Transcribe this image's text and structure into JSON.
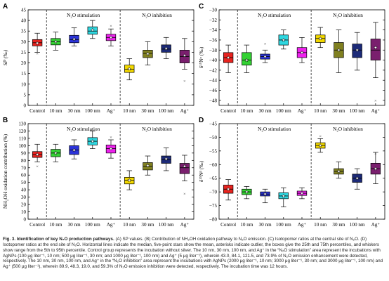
{
  "caption": {
    "title": "Fig. 3. Identification of key N₂O production pathways.",
    "body": " (A) SP values. (B) Contribution of NH₂OH oxidation pathway to N₂O emission. (C) Isotopomer ratios at the central site of N₂O. (D) Isotopomer ratios at the end site of N₂O. Horizontal lines indicate the median, five-point stars show the mean, asterisks indicate outlier, the boxes give the 25th and 75th percentiles, and whiskers show range from the 5th to 95th percentile. Control group represents the incubation without silver. The 10 nm, 30 nm, 100 nm, and Ag⁺ in the “N₂O stimulation” area represent the incubations with AgNPs (100 μg liter⁻¹, 10 nm; 500 μg liter⁻¹, 30 nm; and 1000 μg liter⁻¹, 100 nm) and Ag⁺ (5 μg liter⁻¹), wherein 43.0, 84.1, 121.5, and 73.9% of N₂O emission enhancement were detected, respectively. The 10 nm, 30 nm, 100 nm, and Ag⁺ in the “N₂O inhibition” area represent the incubations with AgNPs (2000 μg liter⁻¹, 10 nm; 3000 μg liter⁻¹, 30 nm; and 3000 μg liter⁻¹, 100 nm) and Ag⁺ (500 μg liter⁻¹), wherein 89.9, 48.3, 19.0, and 59.3% of N₂O emission inhibition were detected, respectively. The incubation time was 12 hours."
  },
  "chart_data": [
    {
      "panel": "A",
      "type": "box",
      "ylabel": "SP (‰)",
      "ylim": [
        0,
        45
      ],
      "yticks": [
        0,
        5,
        10,
        15,
        20,
        25,
        30,
        35,
        40,
        45
      ],
      "categories": [
        "Control",
        "10 nm",
        "30 nm",
        "100 nm",
        "Ag⁺",
        "10 nm",
        "30 nm",
        "100 nm",
        "Ag⁺"
      ],
      "region_labels": [
        "N₂O stimulation",
        "N₂O inhibition"
      ],
      "colors": [
        "#e8231f",
        "#33d233",
        "#2b33d9",
        "#2fd7e0",
        "#ee22ee",
        "#f2d800",
        "#808020",
        "#1c2a78",
        "#7a1f6e"
      ],
      "boxes": [
        {
          "wlo": 25,
          "q1": 28,
          "med": 29.5,
          "q3": 31,
          "whi": 34,
          "mean": 29.3,
          "outliers": [
            24.5
          ]
        },
        {
          "wlo": 26,
          "q1": 28.5,
          "med": 30,
          "q3": 31.5,
          "whi": 34.5,
          "mean": 30,
          "outliers": []
        },
        {
          "wlo": 28,
          "q1": 29.5,
          "med": 31,
          "q3": 33,
          "whi": 36.5,
          "mean": 31.2,
          "outliers": []
        },
        {
          "wlo": 31.5,
          "q1": 33.5,
          "med": 35,
          "q3": 37,
          "whi": 40,
          "mean": 35.5,
          "outliers": []
        },
        {
          "wlo": 28,
          "q1": 30.5,
          "med": 32,
          "q3": 33.5,
          "whi": 36,
          "mean": 32,
          "outliers": [
            37.5
          ]
        },
        {
          "wlo": 12,
          "q1": 15.5,
          "med": 17,
          "q3": 19,
          "whi": 22,
          "mean": 17.2,
          "outliers": []
        },
        {
          "wlo": 19,
          "q1": 22.5,
          "med": 24.5,
          "q3": 26,
          "whi": 30,
          "mean": 24.3,
          "outliers": []
        },
        {
          "wlo": 22,
          "q1": 25,
          "med": 26.5,
          "q3": 28.5,
          "whi": 32,
          "mean": 26.8,
          "outliers": []
        },
        {
          "wlo": 17,
          "q1": 20,
          "med": 23,
          "q3": 26,
          "whi": 31.5,
          "mean": 23.5,
          "outliers": [
            11.5
          ]
        }
      ]
    },
    {
      "panel": "B",
      "type": "box",
      "ylabel": "NH₂OH oxidation contribution (%)",
      "ylim": [
        0,
        130
      ],
      "yticks": [
        0,
        10,
        20,
        30,
        40,
        50,
        60,
        70,
        80,
        90,
        100,
        110,
        120,
        130
      ],
      "categories": [
        "Control",
        "10 nm",
        "30 nm",
        "100 nm",
        "Ag⁺",
        "10 nm",
        "30 nm",
        "100 nm",
        "Ag⁺"
      ],
      "region_labels": [
        "N₂O stimulation",
        "N₂O inhibition"
      ],
      "colors": [
        "#e8231f",
        "#33d233",
        "#2b33d9",
        "#2fd7e0",
        "#ee22ee",
        "#f2d800",
        "#808020",
        "#1c2a78",
        "#7a1f6e"
      ],
      "boxes": [
        {
          "wlo": 78,
          "q1": 84,
          "med": 88,
          "q3": 92,
          "whi": 102,
          "mean": 88,
          "outliers": [
            72
          ]
        },
        {
          "wlo": 78,
          "q1": 85,
          "med": 90,
          "q3": 95,
          "whi": 102,
          "mean": 90,
          "outliers": []
        },
        {
          "wlo": 82,
          "q1": 88,
          "med": 94,
          "q3": 100,
          "whi": 108,
          "mean": 94,
          "outliers": []
        },
        {
          "wlo": 96,
          "q1": 101,
          "med": 106,
          "q3": 111,
          "whi": 120,
          "mean": 106,
          "outliers": []
        },
        {
          "wlo": 83,
          "q1": 90,
          "med": 96,
          "q3": 101,
          "whi": 108,
          "mean": 96,
          "outliers": [
            112
          ]
        },
        {
          "wlo": 40,
          "q1": 48,
          "med": 53,
          "q3": 57,
          "whi": 66,
          "mean": 53,
          "outliers": []
        },
        {
          "wlo": 60,
          "q1": 67,
          "med": 72,
          "q3": 77,
          "whi": 86,
          "mean": 73,
          "outliers": []
        },
        {
          "wlo": 66,
          "q1": 76,
          "med": 81,
          "q3": 86,
          "whi": 97,
          "mean": 82,
          "outliers": []
        },
        {
          "wlo": 52,
          "q1": 62,
          "med": 70,
          "q3": 76,
          "whi": 87,
          "mean": 72,
          "outliers": [
            35
          ]
        }
      ]
    },
    {
      "panel": "C",
      "type": "box",
      "ylabel": "δ¹⁵Nᵅ (‰)",
      "ylim": [
        -49,
        -30
      ],
      "yticks": [
        -48,
        -46,
        -44,
        -42,
        -40,
        -38,
        -36,
        -34,
        -32,
        -30
      ],
      "categories": [
        "Control",
        "10 nm",
        "30 nm",
        "100 nm",
        "Ag⁺",
        "10 nm",
        "30 nm",
        "100 nm",
        "Ag⁺"
      ],
      "region_labels": [
        "N₂O stimulation",
        "N₂O inhibition"
      ],
      "colors": [
        "#e8231f",
        "#33d233",
        "#2b33d9",
        "#2fd7e0",
        "#ee22ee",
        "#f2d800",
        "#808020",
        "#1c2a78",
        "#7a1f6e"
      ],
      "boxes": [
        {
          "wlo": -42.5,
          "q1": -40.5,
          "med": -39.5,
          "q3": -38.5,
          "whi": -37,
          "mean": -39.5,
          "outliers": []
        },
        {
          "wlo": -42.5,
          "q1": -41,
          "med": -40,
          "q3": -38.5,
          "whi": -37,
          "mean": -40,
          "outliers": []
        },
        {
          "wlo": -40.5,
          "q1": -39.8,
          "med": -39.3,
          "q3": -38.8,
          "whi": -38,
          "mean": -39.3,
          "outliers": [
            -36.7
          ]
        },
        {
          "wlo": -37.8,
          "q1": -37,
          "med": -36,
          "q3": -35,
          "whi": -34,
          "mean": -36,
          "outliers": []
        },
        {
          "wlo": -40.5,
          "q1": -39.5,
          "med": -38.5,
          "q3": -37.5,
          "whi": -35.5,
          "mean": -38.5,
          "outliers": []
        },
        {
          "wlo": -37.5,
          "q1": -36.5,
          "med": -35.7,
          "q3": -35,
          "whi": -33.5,
          "mean": -35.7,
          "outliers": []
        },
        {
          "wlo": -42.5,
          "q1": -39.5,
          "med": -38,
          "q3": -36.5,
          "whi": -34,
          "mean": -38,
          "outliers": []
        },
        {
          "wlo": -42,
          "q1": -39.5,
          "med": -38,
          "q3": -36.8,
          "whi": -34.5,
          "mean": -38,
          "outliers": []
        },
        {
          "wlo": -43.5,
          "q1": -40,
          "med": -38,
          "q3": -35.8,
          "whi": -32.5,
          "mean": -37.5,
          "outliers": [
            -48
          ]
        }
      ]
    },
    {
      "panel": "D",
      "type": "box",
      "ylabel": "δ¹⁵Nᵝ (‰)",
      "ylim": [
        -80,
        -45
      ],
      "yticks": [
        -80,
        -75,
        -70,
        -65,
        -60,
        -55,
        -50,
        -45
      ],
      "categories": [
        "Control",
        "10 nm",
        "30 nm",
        "100 nm",
        "Ag⁺",
        "10 nm",
        "30 nm",
        "100 nm",
        "Ag⁺"
      ],
      "region_labels": [
        "N₂O stimulation",
        "N₂O inhibition"
      ],
      "colors": [
        "#e8231f",
        "#33d233",
        "#2b33d9",
        "#2fd7e0",
        "#ee22ee",
        "#f2d800",
        "#808020",
        "#1c2a78",
        "#7a1f6e"
      ],
      "boxes": [
        {
          "wlo": -73,
          "q1": -70.5,
          "med": -69,
          "q3": -67.5,
          "whi": -65.5,
          "mean": -69,
          "outliers": []
        },
        {
          "wlo": -72.5,
          "q1": -71,
          "med": -70,
          "q3": -69,
          "whi": -68,
          "mean": -70,
          "outliers": []
        },
        {
          "wlo": -74,
          "q1": -71.5,
          "med": -70.8,
          "q3": -70,
          "whi": -69,
          "mean": -70.8,
          "outliers": []
        },
        {
          "wlo": -75.5,
          "q1": -72.5,
          "med": -71.5,
          "q3": -70.3,
          "whi": -68.5,
          "mean": -71.5,
          "outliers": []
        },
        {
          "wlo": -72.5,
          "q1": -71.3,
          "med": -70.5,
          "q3": -69.7,
          "whi": -68.5,
          "mean": -70.5,
          "outliers": []
        },
        {
          "wlo": -55.5,
          "q1": -54,
          "med": -53,
          "q3": -52,
          "whi": -50.5,
          "mean": -53,
          "outliers": [
            -49.5
          ]
        },
        {
          "wlo": -65,
          "q1": -63.5,
          "med": -62.5,
          "q3": -61.5,
          "whi": -59,
          "mean": -62.5,
          "outliers": []
        },
        {
          "wlo": -69,
          "q1": -66.5,
          "med": -65,
          "q3": -63.5,
          "whi": -61.5,
          "mean": -65,
          "outliers": []
        },
        {
          "wlo": -67,
          "q1": -63.5,
          "med": -61.5,
          "q3": -59.5,
          "whi": -55.5,
          "mean": -61.5,
          "outliers": [
            -56
          ]
        }
      ]
    }
  ]
}
